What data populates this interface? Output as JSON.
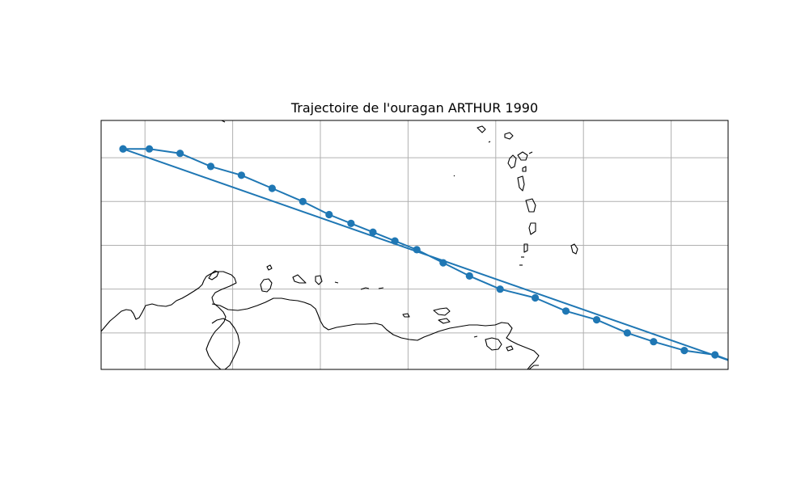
{
  "title": "Trajectoire de l'ouragan ARTHUR 1990",
  "colors": {
    "track": "#1f77b4",
    "grid": "#b0b0b0",
    "coastline": "#000000",
    "frame": "#000000",
    "background": "#ffffff"
  },
  "chart_data": {
    "type": "map-track",
    "grid": true,
    "legend": "none",
    "track_points": [
      {
        "lon": -66.5,
        "lat": 20.2
      },
      {
        "lon": -65.9,
        "lat": 20.2
      },
      {
        "lon": -65.2,
        "lat": 20.1
      },
      {
        "lon": -64.5,
        "lat": 19.8
      },
      {
        "lon": -63.8,
        "lat": 19.6
      },
      {
        "lon": -63.1,
        "lat": 19.3
      },
      {
        "lon": -62.4,
        "lat": 19.0
      },
      {
        "lon": -61.8,
        "lat": 18.7
      },
      {
        "lon": -61.3,
        "lat": 18.5
      },
      {
        "lon": -60.8,
        "lat": 18.3
      },
      {
        "lon": -60.3,
        "lat": 18.1
      },
      {
        "lon": -59.8,
        "lat": 17.9
      },
      {
        "lon": -59.2,
        "lat": 17.6
      },
      {
        "lon": -58.6,
        "lat": 17.3
      },
      {
        "lon": -57.9,
        "lat": 17.0
      },
      {
        "lon": -57.1,
        "lat": 16.8
      },
      {
        "lon": -56.4,
        "lat": 16.5
      },
      {
        "lon": -55.7,
        "lat": 16.3
      },
      {
        "lon": -55.0,
        "lat": 16.0
      },
      {
        "lon": -54.4,
        "lat": 15.8
      },
      {
        "lon": -53.7,
        "lat": 15.6
      },
      {
        "lon": -53.0,
        "lat": 15.5
      },
      {
        "lon": -52.2,
        "lat": 15.2
      },
      {
        "lon": -51.4,
        "lat": 14.9
      },
      {
        "lon": -50.7,
        "lat": 14.6
      },
      {
        "lon": -49.9,
        "lat": 14.4
      },
      {
        "lon": -66.5,
        "lat": 20.2
      }
    ]
  }
}
